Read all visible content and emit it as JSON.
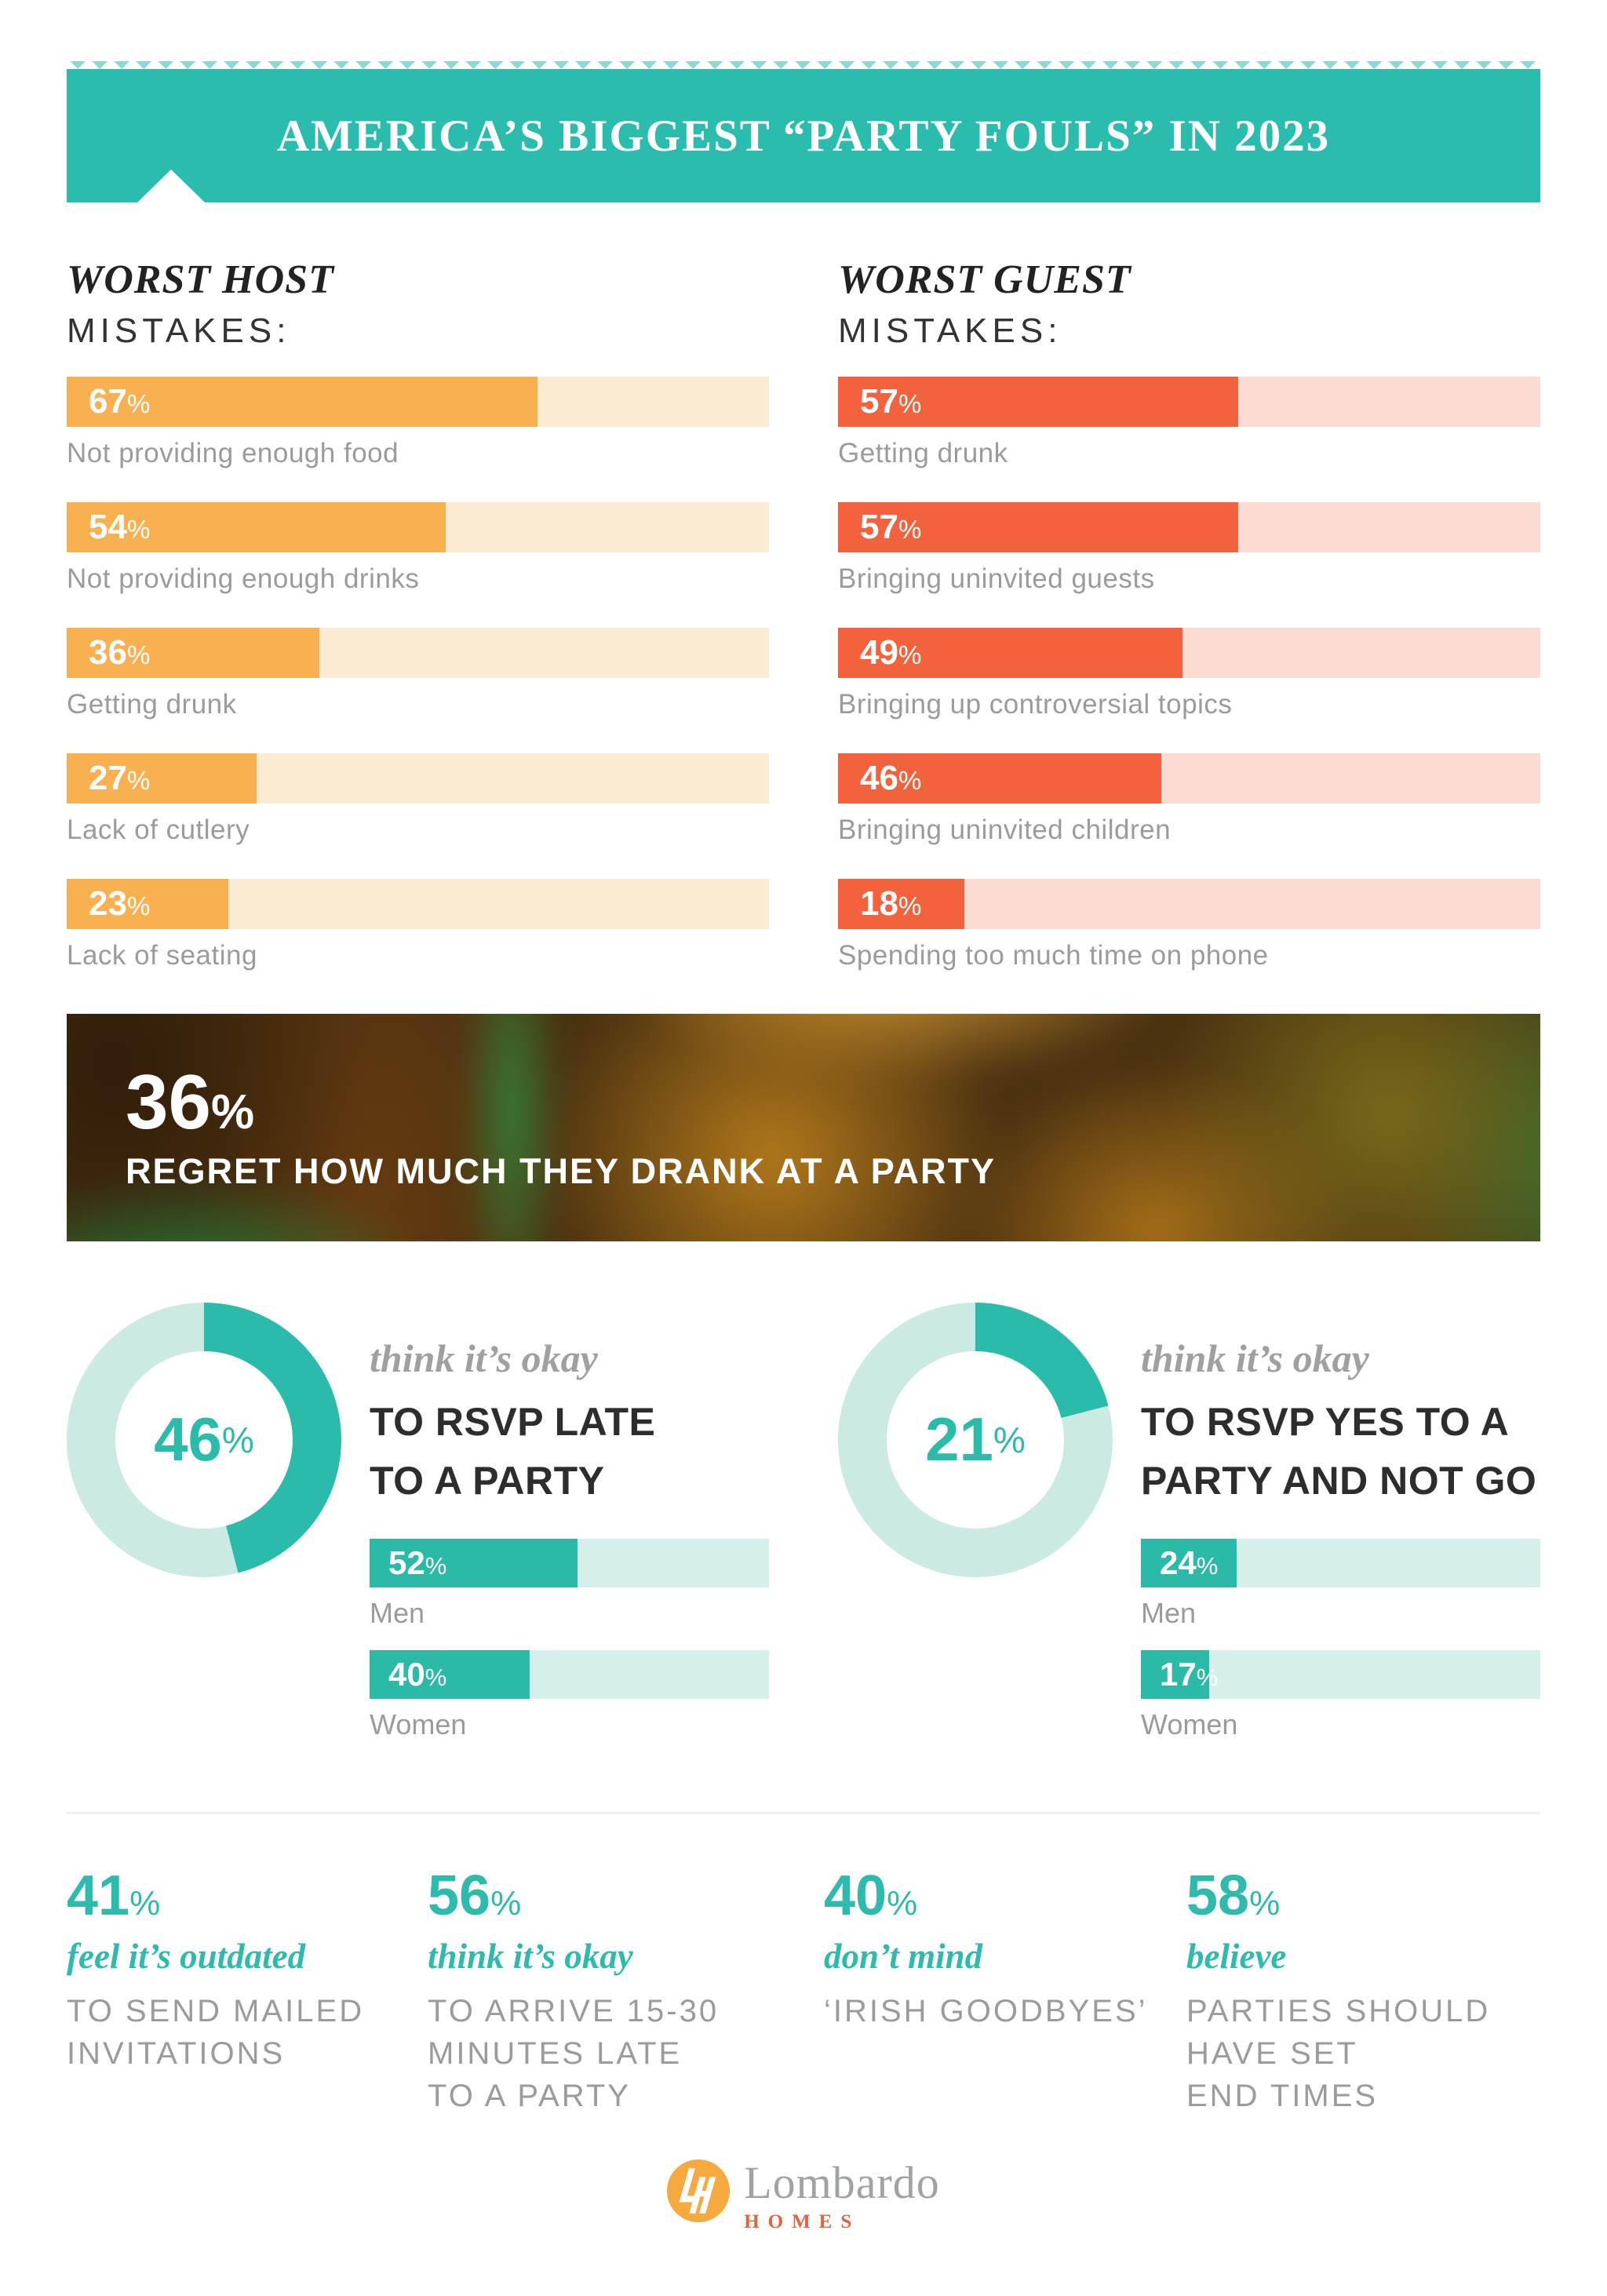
{
  "unit": "%",
  "colors": {
    "banner_bg": "#2ABCAC",
    "teal": "#2BBBAA",
    "teal_light": "#CBEAE4",
    "host_bar": "#F9B050",
    "host_track": "#FCEBD3",
    "guest_bar": "#F2623D",
    "guest_track": "#FBDCD3",
    "gender_fill": "#2BB9A8",
    "gender_track": "#D5F0EA",
    "stat_teal": "#2EBAAC",
    "text_dark": "#2D2D2D",
    "text_gray": "#9B9B9B",
    "logo_orange": "#F5A93F",
    "logo_text": "#9FA3A2",
    "logo_homes": "#E8603C"
  },
  "header": {
    "title": "AMERICA’S BIGGEST “PARTY FOULS” IN 2023"
  },
  "host": {
    "heading_italic": "WORST HOST",
    "heading_rest": "MISTAKES:",
    "bars": [
      {
        "value": 67,
        "label": "Not providing enough food"
      },
      {
        "value": 54,
        "label": "Not providing enough drinks"
      },
      {
        "value": 36,
        "label": "Getting drunk"
      },
      {
        "value": 27,
        "label": "Lack of cutlery"
      },
      {
        "value": 23,
        "label": "Lack of seating"
      }
    ]
  },
  "guest": {
    "heading_italic": "WORST GUEST",
    "heading_rest": "MISTAKES:",
    "bars": [
      {
        "value": 57,
        "label": "Getting drunk"
      },
      {
        "value": 57,
        "label": "Bringing uninvited guests"
      },
      {
        "value": 49,
        "label": "Bringing up controversial topics"
      },
      {
        "value": 46,
        "label": "Bringing uninvited children"
      },
      {
        "value": 18,
        "label": "Spending too much time on phone"
      }
    ]
  },
  "photo": {
    "value": 36,
    "caption": "REGRET HOW MUCH THEY DRANK AT A PARTY"
  },
  "donuts": [
    {
      "value": 46,
      "lead_italic": "think it’s okay",
      "lead_bold": "TO RSVP LATE\nTO A PARTY",
      "bars": [
        {
          "value": 52,
          "label": "Men"
        },
        {
          "value": 40,
          "label": "Women"
        }
      ]
    },
    {
      "value": 21,
      "lead_italic": "think it’s okay",
      "lead_bold": "TO RSVP YES TO A\nPARTY AND NOT GO",
      "bars": [
        {
          "value": 24,
          "label": "Men"
        },
        {
          "value": 17,
          "label": "Women"
        }
      ]
    }
  ],
  "stats": [
    {
      "value": 41,
      "qualifier": "feel it’s outdated",
      "caption": "TO SEND MAILED\nINVITATIONS"
    },
    {
      "value": 56,
      "qualifier": "think it’s okay",
      "caption": "TO ARRIVE 15-30\nMINUTES LATE\nTO A PARTY"
    },
    {
      "value": 40,
      "qualifier": "don’t mind",
      "caption": "‘IRISH GOODBYES’"
    },
    {
      "value": 58,
      "qualifier": "believe",
      "caption": "PARTIES SHOULD\nHAVE SET\nEND TIMES"
    }
  ],
  "logo": {
    "name": "Lombardo",
    "sub": "HOMES"
  },
  "chart_data": [
    {
      "type": "bar",
      "title": "WORST HOST MISTAKES",
      "orientation": "horizontal",
      "unit": "%",
      "categories": [
        "Not providing enough food",
        "Not providing enough drinks",
        "Getting drunk",
        "Lack of cutlery",
        "Lack of seating"
      ],
      "values": [
        67,
        54,
        36,
        27,
        23
      ],
      "xlim": [
        0,
        100
      ],
      "bar_color": "#F9B050",
      "track_color": "#FCEBD3",
      "value_labels_inside_bar": true
    },
    {
      "type": "bar",
      "title": "WORST GUEST MISTAKES",
      "orientation": "horizontal",
      "unit": "%",
      "categories": [
        "Getting drunk",
        "Bringing uninvited guests",
        "Bringing up controversial topics",
        "Bringing uninvited children",
        "Spending too much time on phone"
      ],
      "values": [
        57,
        57,
        49,
        46,
        18
      ],
      "xlim": [
        0,
        100
      ],
      "bar_color": "#F2623D",
      "track_color": "#FBDCD3",
      "value_labels_inside_bar": true
    },
    {
      "type": "stat",
      "value": 36,
      "unit": "%",
      "label": "REGRET HOW MUCH THEY DRANK AT A PARTY"
    },
    {
      "type": "donut",
      "value": 46,
      "unit": "%",
      "label": "think it’s okay TO RSVP LATE TO A PARTY",
      "fill_color": "#2BBBAA",
      "track_color": "#CBEAE4",
      "start_angle": "top",
      "direction": "clockwise",
      "series": [
        {
          "name": "Men",
          "value": 52
        },
        {
          "name": "Women",
          "value": 40
        }
      ]
    },
    {
      "type": "donut",
      "value": 21,
      "unit": "%",
      "label": "think it’s okay TO RSVP YES TO A PARTY AND NOT GO",
      "fill_color": "#2BBBAA",
      "track_color": "#CBEAE4",
      "start_angle": "top",
      "direction": "clockwise",
      "series": [
        {
          "name": "Men",
          "value": 24
        },
        {
          "name": "Women",
          "value": 17
        }
      ]
    },
    {
      "type": "stat-list",
      "unit": "%",
      "values": [
        41,
        56,
        40,
        58
      ],
      "labels": [
        "feel it’s outdated TO SEND MAILED INVITATIONS",
        "think it’s okay TO ARRIVE 15-30 MINUTES LATE TO A PARTY",
        "don’t mind ‘IRISH GOODBYES’",
        "believe PARTIES SHOULD HAVE SET END TIMES"
      ]
    }
  ]
}
